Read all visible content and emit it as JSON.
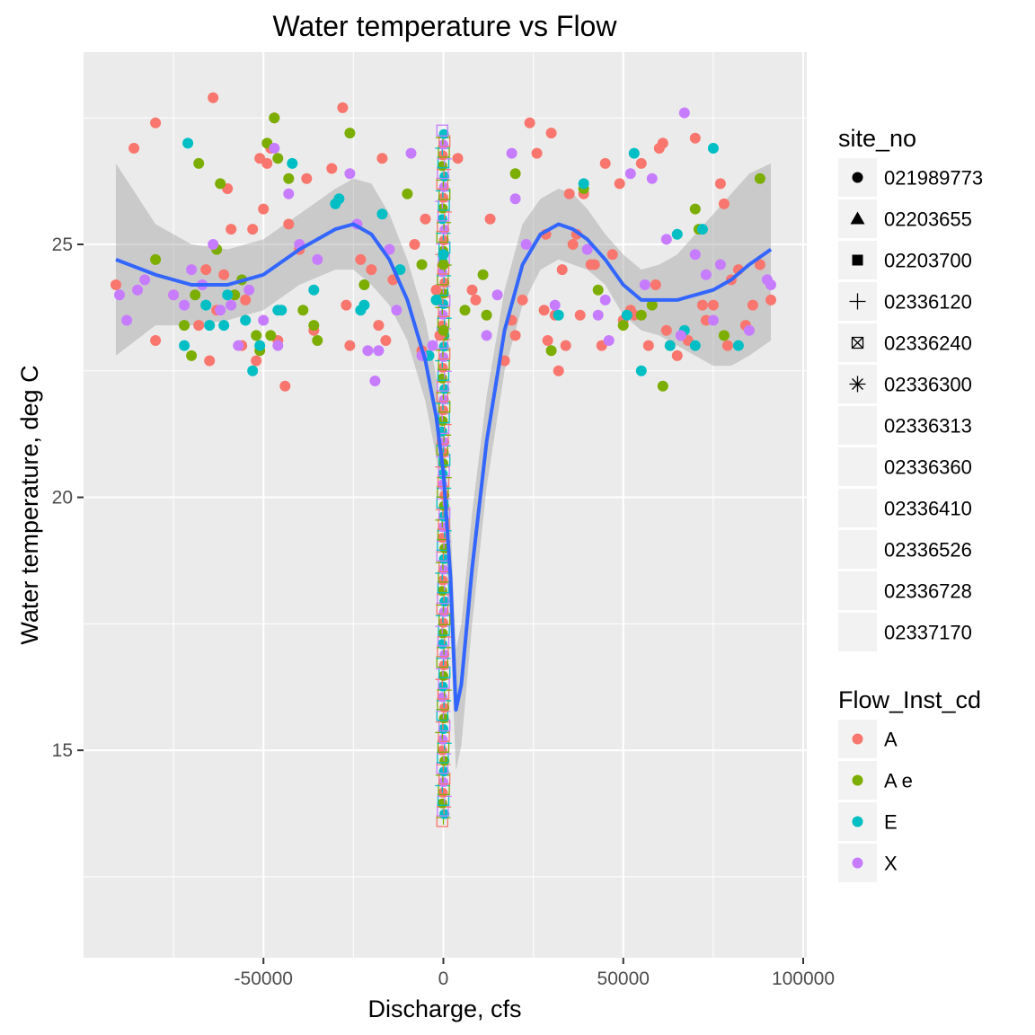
{
  "chart_data": {
    "type": "scatter",
    "title": "Water temperature vs Flow",
    "xlabel": "Discharge, cfs",
    "ylabel": "Water temperature, deg C",
    "xlim": [
      -100000,
      101000
    ],
    "ylim": [
      10.9,
      28.8
    ],
    "x_ticks": [
      -50000,
      0,
      50000,
      100000
    ],
    "x_tick_labels": [
      "-50000",
      "0",
      "50000",
      "100000"
    ],
    "y_ticks": [
      15,
      20,
      25
    ],
    "y_tick_labels": [
      "15",
      "20",
      "25"
    ],
    "grid": true,
    "legend_placement": "right",
    "legends": [
      {
        "title": "site_no",
        "entries": [
          {
            "label": "021989773",
            "shape": "circle"
          },
          {
            "label": "02203655",
            "shape": "triangle"
          },
          {
            "label": "02203700",
            "shape": "square"
          },
          {
            "label": "02336120",
            "shape": "plus"
          },
          {
            "label": "02336240",
            "shape": "boxcross"
          },
          {
            "label": "02336300",
            "shape": "asterisk"
          },
          {
            "label": "02336313",
            "shape": "none"
          },
          {
            "label": "02336360",
            "shape": "none"
          },
          {
            "label": "02336410",
            "shape": "none"
          },
          {
            "label": "02336526",
            "shape": "none"
          },
          {
            "label": "02336728",
            "shape": "none"
          },
          {
            "label": "02337170",
            "shape": "none"
          }
        ]
      },
      {
        "title": "Flow_Inst_cd",
        "entries": [
          {
            "label": "A",
            "color": "#F8766D"
          },
          {
            "label": "A e",
            "color": "#7CAE00"
          },
          {
            "label": "E",
            "color": "#00BFC4"
          },
          {
            "label": "X",
            "color": "#C77CFF"
          }
        ]
      }
    ],
    "colors": {
      "A": "#F8766D",
      "A e": "#7CAE00",
      "E": "#00BFC4",
      "X": "#C77CFF",
      "smooth": "#3366FF",
      "ribbon": "#999999",
      "panel": "#EBEBEB"
    },
    "series": [
      {
        "name": "A",
        "points": [
          [
            -91000,
            24.2
          ],
          [
            -86000,
            26.9
          ],
          [
            -80000,
            27.4
          ],
          [
            -80000,
            23.1
          ],
          [
            -75000,
            24.0
          ],
          [
            -68000,
            23.4
          ],
          [
            -66000,
            24.5
          ],
          [
            -65000,
            22.7
          ],
          [
            -64000,
            27.9
          ],
          [
            -63000,
            23.7
          ],
          [
            -61000,
            24.4
          ],
          [
            -60000,
            26.1
          ],
          [
            -59000,
            25.3
          ],
          [
            -56000,
            23.0
          ],
          [
            -55000,
            23.9
          ],
          [
            -53000,
            25.3
          ],
          [
            -52000,
            22.7
          ],
          [
            -51000,
            26.7
          ],
          [
            -50000,
            25.7
          ],
          [
            -49000,
            26.6
          ],
          [
            -48000,
            26.9
          ],
          [
            -47000,
            27.5
          ],
          [
            -46000,
            23.1
          ],
          [
            -44000,
            22.2
          ],
          [
            -43000,
            25.4
          ],
          [
            -40000,
            24.9
          ],
          [
            -38000,
            26.3
          ],
          [
            -36000,
            23.3
          ],
          [
            -31000,
            26.5
          ],
          [
            -28000,
            27.7
          ],
          [
            -27000,
            23.8
          ],
          [
            -26000,
            23.0
          ],
          [
            -23000,
            24.7
          ],
          [
            -20000,
            24.5
          ],
          [
            -18000,
            23.4
          ],
          [
            -17000,
            26.7
          ],
          [
            -16000,
            23.1
          ],
          [
            -14000,
            24.3
          ],
          [
            -8000,
            25.0
          ],
          [
            -6000,
            22.9
          ],
          [
            -5000,
            25.5
          ],
          [
            -2000,
            24.1
          ],
          [
            -1000,
            23.2
          ],
          [
            4000,
            26.7
          ],
          [
            8000,
            24.1
          ],
          [
            9000,
            23.9
          ],
          [
            13000,
            25.5
          ],
          [
            17000,
            22.7
          ],
          [
            19000,
            23.5
          ],
          [
            20000,
            23.2
          ],
          [
            22000,
            23.9
          ],
          [
            24000,
            27.4
          ],
          [
            26000,
            26.8
          ],
          [
            28000,
            23.7
          ],
          [
            28500,
            25.2
          ],
          [
            29000,
            23.1
          ],
          [
            30000,
            27.2
          ],
          [
            31000,
            23.6
          ],
          [
            32000,
            22.5
          ],
          [
            33000,
            24.5
          ],
          [
            34000,
            23.0
          ],
          [
            35000,
            26.0
          ],
          [
            36000,
            25.0
          ],
          [
            37000,
            25.2
          ],
          [
            38000,
            23.6
          ],
          [
            39000,
            26.0
          ],
          [
            41000,
            24.6
          ],
          [
            42000,
            24.6
          ],
          [
            44000,
            23.0
          ],
          [
            45000,
            26.6
          ],
          [
            47000,
            24.8
          ],
          [
            49000,
            26.2
          ],
          [
            50000,
            23.5
          ],
          [
            52000,
            23.7
          ],
          [
            53000,
            23.6
          ],
          [
            55000,
            26.6
          ],
          [
            57000,
            23.0
          ],
          [
            59000,
            24.2
          ],
          [
            60000,
            26.9
          ],
          [
            61000,
            27.0
          ],
          [
            62000,
            23.3
          ],
          [
            63000,
            23.0
          ],
          [
            65000,
            22.8
          ],
          [
            68000,
            23.1
          ],
          [
            70000,
            27.1
          ],
          [
            72000,
            23.8
          ],
          [
            73000,
            23.5
          ],
          [
            75000,
            23.8
          ],
          [
            77000,
            26.2
          ],
          [
            78000,
            25.8
          ],
          [
            79000,
            23.0
          ],
          [
            80000,
            24.3
          ],
          [
            82000,
            24.5
          ],
          [
            84000,
            23.4
          ],
          [
            86000,
            23.8
          ],
          [
            88000,
            24.6
          ],
          [
            91000,
            23.9
          ]
        ]
      },
      {
        "name": "A e",
        "points": [
          [
            -80000,
            24.7
          ],
          [
            -72000,
            23.4
          ],
          [
            -70000,
            22.8
          ],
          [
            -69000,
            24.0
          ],
          [
            -68000,
            26.6
          ],
          [
            -63000,
            24.9
          ],
          [
            -62000,
            26.2
          ],
          [
            -58000,
            24.0
          ],
          [
            -56000,
            24.3
          ],
          [
            -52000,
            23.2
          ],
          [
            -51000,
            22.9
          ],
          [
            -49000,
            27.0
          ],
          [
            -48000,
            23.2
          ],
          [
            -47000,
            27.5
          ],
          [
            -46000,
            26.7
          ],
          [
            -43000,
            26.3
          ],
          [
            -39000,
            23.7
          ],
          [
            -36000,
            23.4
          ],
          [
            -35000,
            23.1
          ],
          [
            -26000,
            27.2
          ],
          [
            -22000,
            24.2
          ],
          [
            -10000,
            26.0
          ],
          [
            -6000,
            24.6
          ],
          [
            -2000,
            23.9
          ],
          [
            0,
            24.6
          ],
          [
            0,
            23.3
          ],
          [
            6000,
            23.7
          ],
          [
            11000,
            24.4
          ],
          [
            12000,
            23.6
          ],
          [
            20000,
            26.4
          ],
          [
            30000,
            22.9
          ],
          [
            39000,
            26.1
          ],
          [
            43000,
            24.1
          ],
          [
            50000,
            23.4
          ],
          [
            55000,
            23.6
          ],
          [
            58000,
            23.8
          ],
          [
            61000,
            22.2
          ],
          [
            70000,
            25.7
          ],
          [
            71000,
            25.3
          ],
          [
            78000,
            23.2
          ],
          [
            88000,
            26.3
          ]
        ]
      },
      {
        "name": "E",
        "points": [
          [
            -71000,
            27.0
          ],
          [
            -72000,
            23.0
          ],
          [
            -66000,
            23.8
          ],
          [
            -65000,
            23.4
          ],
          [
            -61000,
            23.4
          ],
          [
            -60000,
            24.0
          ],
          [
            -55000,
            23.5
          ],
          [
            -53000,
            22.5
          ],
          [
            -51000,
            23.0
          ],
          [
            -46000,
            23.7
          ],
          [
            -45000,
            23.7
          ],
          [
            -42000,
            26.6
          ],
          [
            -36000,
            24.1
          ],
          [
            -30000,
            25.8
          ],
          [
            -29000,
            25.9
          ],
          [
            -23000,
            23.7
          ],
          [
            -22000,
            23.8
          ],
          [
            -17000,
            25.6
          ],
          [
            -12000,
            24.5
          ],
          [
            -4000,
            22.8
          ],
          [
            -2000,
            23.9
          ],
          [
            0,
            24.8
          ],
          [
            32000,
            23.6
          ],
          [
            39000,
            26.2
          ],
          [
            51000,
            23.6
          ],
          [
            53000,
            26.8
          ],
          [
            55000,
            22.5
          ],
          [
            63000,
            23.0
          ],
          [
            65000,
            25.2
          ],
          [
            67000,
            23.3
          ],
          [
            70000,
            23.0
          ],
          [
            72000,
            25.3
          ],
          [
            75000,
            26.9
          ],
          [
            82000,
            23.0
          ]
        ]
      },
      {
        "name": "X",
        "points": [
          [
            -90000,
            24.0
          ],
          [
            -88000,
            23.5
          ],
          [
            -85000,
            24.1
          ],
          [
            -83000,
            24.3
          ],
          [
            -75000,
            24.0
          ],
          [
            -72000,
            23.8
          ],
          [
            -70000,
            24.5
          ],
          [
            -67000,
            24.2
          ],
          [
            -64000,
            25.0
          ],
          [
            -62000,
            23.7
          ],
          [
            -59000,
            23.8
          ],
          [
            -57000,
            23.0
          ],
          [
            -54000,
            24.1
          ],
          [
            -50000,
            23.5
          ],
          [
            -47000,
            26.9
          ],
          [
            -46000,
            23.0
          ],
          [
            -43000,
            26.0
          ],
          [
            -40000,
            25.0
          ],
          [
            -35000,
            24.7
          ],
          [
            -26000,
            26.4
          ],
          [
            -24000,
            25.4
          ],
          [
            -21000,
            22.9
          ],
          [
            -19000,
            22.3
          ],
          [
            -18000,
            22.9
          ],
          [
            -15000,
            24.9
          ],
          [
            -13000,
            23.7
          ],
          [
            -9000,
            26.8
          ],
          [
            -6000,
            22.8
          ],
          [
            -3000,
            23.0
          ],
          [
            12000,
            23.2
          ],
          [
            15000,
            24.0
          ],
          [
            19000,
            26.8
          ],
          [
            20000,
            25.9
          ],
          [
            23000,
            25.0
          ],
          [
            31000,
            23.8
          ],
          [
            40000,
            24.9
          ],
          [
            43000,
            23.6
          ],
          [
            45000,
            23.9
          ],
          [
            46000,
            23.1
          ],
          [
            52000,
            26.4
          ],
          [
            56000,
            24.2
          ],
          [
            58000,
            26.3
          ],
          [
            62000,
            25.1
          ],
          [
            66000,
            23.2
          ],
          [
            67000,
            27.6
          ],
          [
            70000,
            24.8
          ],
          [
            73000,
            24.4
          ],
          [
            75000,
            23.5
          ],
          [
            77000,
            24.6
          ],
          [
            85000,
            23.3
          ],
          [
            90000,
            24.3
          ],
          [
            91000,
            24.2
          ]
        ]
      }
    ],
    "vertical_cluster": {
      "x": 0,
      "y_min": 13.6,
      "y_max": 27.3
    },
    "smooth_line": {
      "x": [
        -91000,
        -80000,
        -70000,
        -60000,
        -50000,
        -40000,
        -30000,
        -25000,
        -20000,
        -15000,
        -10000,
        -5000,
        -2000,
        0,
        2000,
        3500,
        5000,
        8000,
        12000,
        17000,
        22000,
        27000,
        32000,
        36000,
        40000,
        45000,
        50000,
        55000,
        60000,
        65000,
        70000,
        75000,
        80000,
        85000,
        91000
      ],
      "y": [
        24.7,
        24.4,
        24.2,
        24.2,
        24.4,
        24.9,
        25.3,
        25.4,
        25.2,
        24.7,
        23.9,
        22.7,
        21.6,
        20.5,
        18.4,
        15.8,
        16.3,
        18.6,
        21.1,
        23.3,
        24.6,
        25.2,
        25.4,
        25.3,
        25.1,
        24.7,
        24.2,
        23.9,
        23.9,
        23.9,
        24.0,
        24.1,
        24.3,
        24.6,
        24.9
      ]
    },
    "ribbon": {
      "upper": [
        26.6,
        25.4,
        25.0,
        24.9,
        25.1,
        25.6,
        26.1,
        26.3,
        26.2,
        25.6,
        24.7,
        23.5,
        22.4,
        21.3,
        19.5,
        17.0,
        17.5,
        19.7,
        22.0,
        24.1,
        25.4,
        25.9,
        26.1,
        26.0,
        25.7,
        25.2,
        24.8,
        24.5,
        24.6,
        24.8,
        25.2,
        25.6,
        26.0,
        26.4,
        26.6
      ],
      "lower": [
        22.8,
        23.4,
        23.4,
        23.5,
        23.7,
        24.2,
        24.5,
        24.5,
        24.2,
        23.8,
        23.1,
        21.9,
        20.8,
        19.7,
        17.3,
        14.6,
        15.1,
        17.5,
        20.2,
        22.5,
        23.8,
        24.5,
        24.7,
        24.6,
        24.5,
        24.2,
        23.6,
        23.3,
        23.2,
        23.0,
        22.8,
        22.6,
        22.6,
        22.8,
        23.1
      ]
    }
  }
}
